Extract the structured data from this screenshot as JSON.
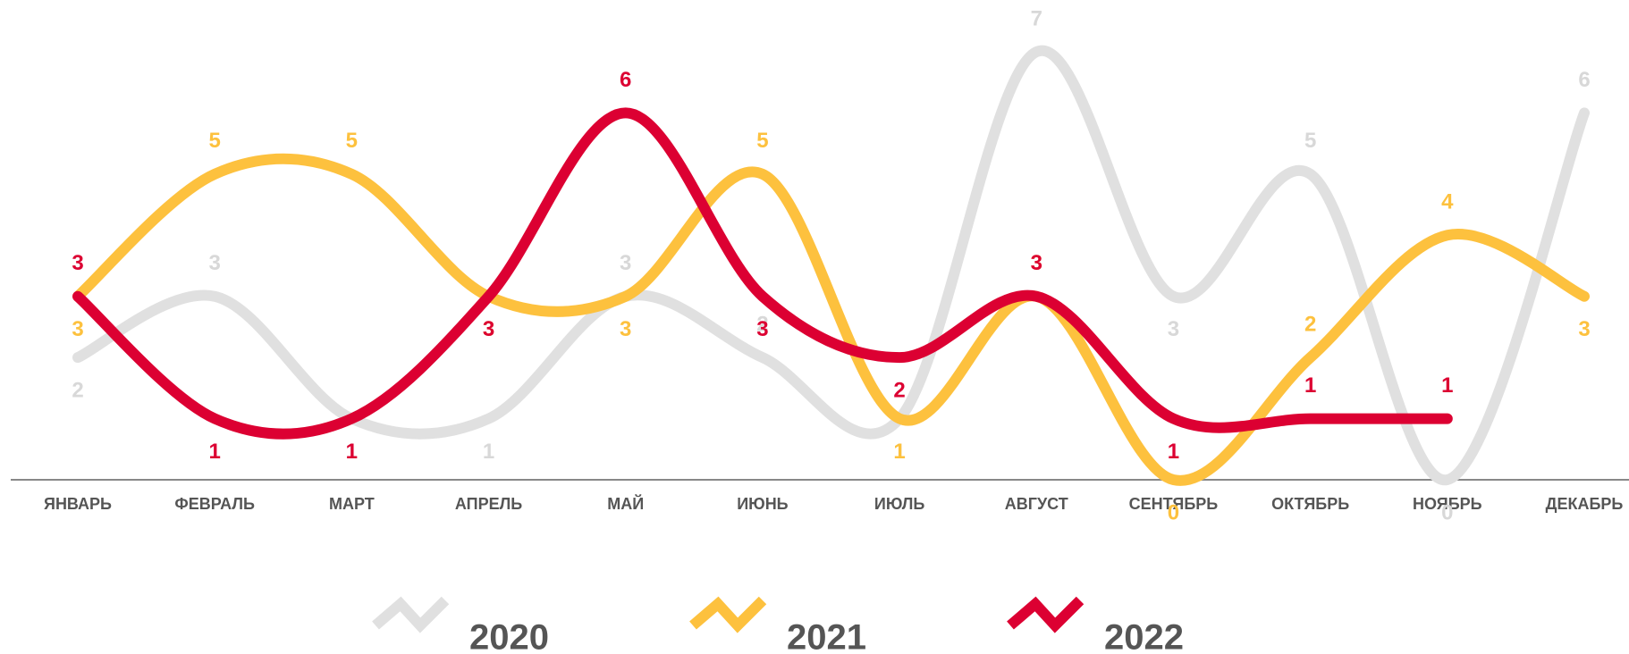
{
  "chart_data": {
    "type": "line",
    "categories": [
      "ЯНВАРЬ",
      "ФЕВРАЛЬ",
      "МАРТ",
      "АПРЕЛЬ",
      "МАЙ",
      "ИЮНЬ",
      "ИЮЛЬ",
      "АВГУСТ",
      "СЕНТЯБРЬ",
      "ОКТЯБРЬ",
      "НОЯБРЬ",
      "ДЕКАБРЬ"
    ],
    "series": [
      {
        "name": "2020",
        "color": "#e0e0e0",
        "values": [
          2,
          3,
          1,
          1,
          3,
          2,
          1,
          7,
          3,
          5,
          0,
          6
        ]
      },
      {
        "name": "2021",
        "color": "#fdc13e",
        "values": [
          3,
          5,
          5,
          3,
          3,
          5,
          1,
          3,
          0,
          2,
          4,
          3
        ]
      },
      {
        "name": "2022",
        "color": "#dc0032",
        "values": [
          3,
          1,
          1,
          3,
          6,
          3,
          2,
          3,
          1,
          1,
          1,
          null
        ]
      }
    ],
    "ylim": [
      0,
      7
    ]
  }
}
